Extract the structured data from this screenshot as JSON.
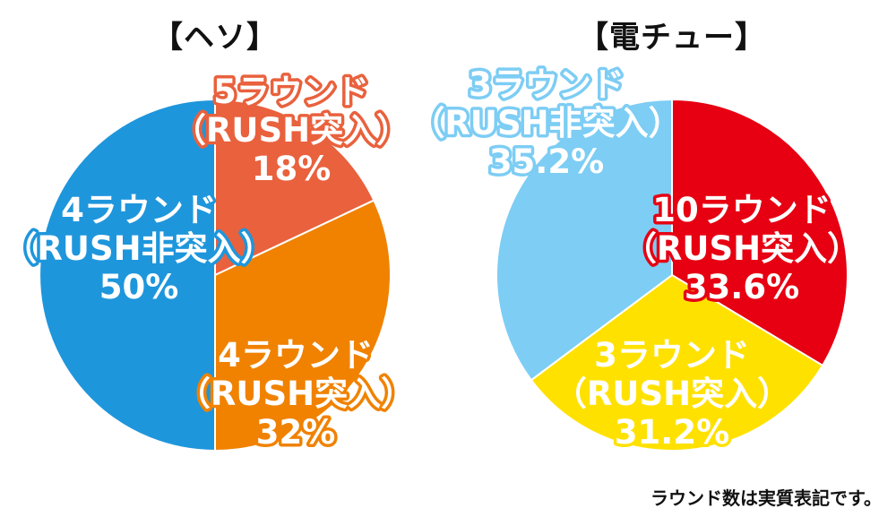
{
  "chart_data": [
    {
      "type": "pie",
      "title": "【ヘソ】",
      "slices": [
        {
          "label": [
            "5ラウンド",
            "（RUSH突入）",
            "18%"
          ],
          "value": 18,
          "color": "#E9613D"
        },
        {
          "label": [
            "4ラウンド",
            "（RUSH突入）",
            "32%"
          ],
          "value": 32,
          "color": "#F08200"
        },
        {
          "label": [
            "4ラウンド",
            "（RUSH非突入）",
            "50%"
          ],
          "value": 50,
          "color": "#1E96DC"
        }
      ]
    },
    {
      "type": "pie",
      "title": "【電チュー】",
      "slices": [
        {
          "label": [
            "10ラウンド",
            "（RUSH突入）",
            "33.6%"
          ],
          "value": 33.6,
          "color": "#E60012"
        },
        {
          "label": [
            "3ラウンド",
            "（RUSH突入）",
            "31.2%"
          ],
          "value": 31.2,
          "color": "#FFE100"
        },
        {
          "label": [
            "3ラウンド",
            "（RUSH非突入）",
            "35.2%"
          ],
          "value": 35.2,
          "color": "#7DCDF4"
        }
      ]
    }
  ],
  "footnote": "ラウンド数は実質表記です。"
}
